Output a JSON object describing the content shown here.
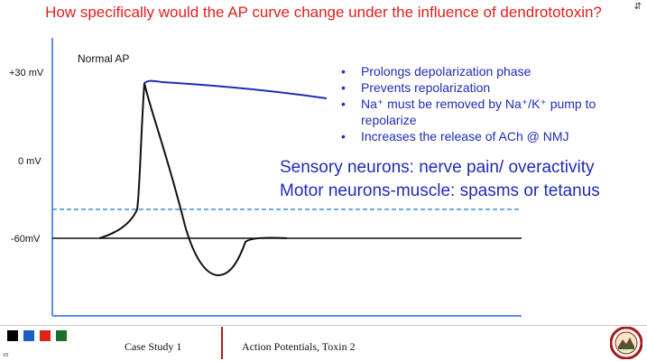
{
  "header": {
    "title": "How specifically would the AP curve change under the influence of dendrototoxin?",
    "corner_icon": "expand-arrows-icon"
  },
  "diagram": {
    "y_labels": [
      "+30 mV",
      "0 mV",
      "-60mV"
    ],
    "trace_label": "Normal AP",
    "colors": {
      "axes": "#5b8ff0",
      "normal_trace": "#111111",
      "toxin_trace": "#1f2cb6",
      "threshold_dashed": "#3b8fd6",
      "resting_line": "#111111"
    }
  },
  "bullets": [
    "Prolongs depolarization phase",
    "Prevents repolarization",
    "Na⁺ must be removed by Na⁺/K⁺ pump to repolarize",
    "Increases the release of ACh @ NMJ"
  ],
  "effects": [
    "Sensory neurons: nerve pain/ overactivity",
    "Motor neurons-muscle: spasms or tetanus"
  ],
  "footer": {
    "swatch_colors": [
      "#000000",
      "#1a5fc8",
      "#e0201b",
      "#1c6e2b"
    ],
    "left_text": "Case Study 1",
    "right_text": "Action Potentials, Toxin 2",
    "slide_number": "10",
    "logo": "university-seal-icon",
    "divider_color": "#b11f1f"
  }
}
